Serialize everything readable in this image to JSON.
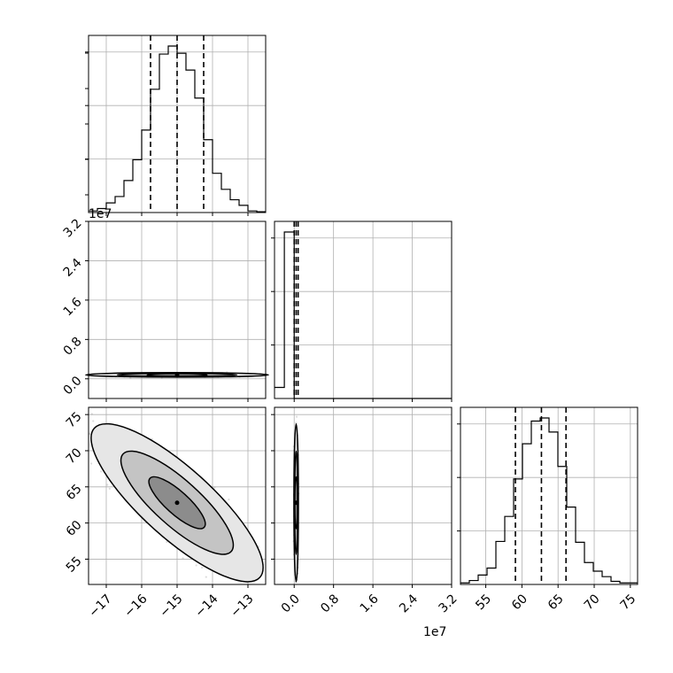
{
  "chart_data": {
    "type": "corner",
    "parameters": [
      {
        "name": "",
        "range": [
          -17.5,
          -12.5
        ],
        "ticks": [
          -17,
          -16,
          -15,
          -14,
          -13
        ],
        "tick_labels": [
          "−17",
          "−16",
          "−15",
          "−14",
          "−13"
        ]
      },
      {
        "name": "",
        "range": [
          -0.4,
          3.2
        ],
        "ticks": [
          0.0,
          0.8,
          1.6,
          2.4,
          3.2
        ],
        "tick_labels": [
          "0.0",
          "0.8",
          "1.6",
          "2.4",
          "3.2"
        ],
        "offset_label": "1e7"
      },
      {
        "name": "",
        "range": [
          51.5,
          76
        ],
        "ticks": [
          55,
          60,
          65,
          70,
          75
        ],
        "tick_labels": [
          "55",
          "60",
          "65",
          "70",
          "75"
        ]
      }
    ],
    "quantiles": {
      "p0": [
        -15.75,
        -15.0,
        -14.25
      ],
      "p1": [
        0.0,
        0.04,
        0.08
      ],
      "p2": [
        59.1,
        62.7,
        66.1
      ]
    },
    "histograms": [
      {
        "param": 0,
        "bin_edges": [
          -17.5,
          -17.25,
          -17.0,
          -16.75,
          -16.5,
          -16.25,
          -16.0,
          -15.75,
          -15.5,
          -15.25,
          -15.0,
          -14.75,
          -14.5,
          -14.25,
          -14.0,
          -13.75,
          -13.5,
          -13.25,
          -13.0,
          -12.75,
          -12.5
        ],
        "counts": [
          2,
          5,
          12,
          20,
          40,
          66,
          103,
          154,
          198,
          208,
          199,
          178,
          143,
          91,
          49,
          29,
          16,
          9,
          2,
          1
        ]
      },
      {
        "param": 1,
        "bin_edges": [
          -0.4,
          -0.2,
          0.0,
          0.2,
          0.4,
          0.6,
          0.8,
          1.0,
          1.2,
          1.4,
          1.6,
          1.8,
          2.0,
          2.2,
          2.4,
          2.6,
          2.8,
          3.0,
          3.2
        ],
        "counts": [
          3,
          45,
          0,
          0,
          0,
          0,
          0,
          0,
          0,
          0,
          0,
          0,
          0,
          0,
          0,
          0,
          0,
          0
        ]
      },
      {
        "param": 2,
        "bin_edges": [
          51.5,
          52.725,
          53.95,
          55.175,
          56.4,
          57.625,
          58.85,
          60.075,
          61.3,
          62.525,
          63.75,
          64.975,
          66.2,
          67.425,
          68.65,
          69.875,
          71.1,
          72.325,
          73.55,
          74.775,
          76.0
        ],
        "counts": [
          2,
          5,
          12,
          21,
          55,
          87,
          135,
          180,
          209,
          213,
          195,
          151,
          99,
          54,
          28,
          17,
          10,
          4,
          2,
          2
        ]
      }
    ],
    "histogram_y_ticks": 3,
    "contour_levels": [
      0.39,
      0.86,
      0.99
    ],
    "scatter_2d": [
      {
        "x": 0,
        "y": 1,
        "center": [
          -15.0,
          0.08
        ],
        "sigma": [
          0.85,
          0.015
        ]
      },
      {
        "x": 0,
        "y": 2,
        "center": [
          -15.0,
          62.8
        ],
        "sigma": [
          0.8,
          3.6
        ],
        "correlation": -0.82
      },
      {
        "x": 1,
        "y": 2,
        "center": [
          0.04,
          62.8
        ],
        "sigma": [
          0.015,
          3.6
        ]
      }
    ]
  }
}
